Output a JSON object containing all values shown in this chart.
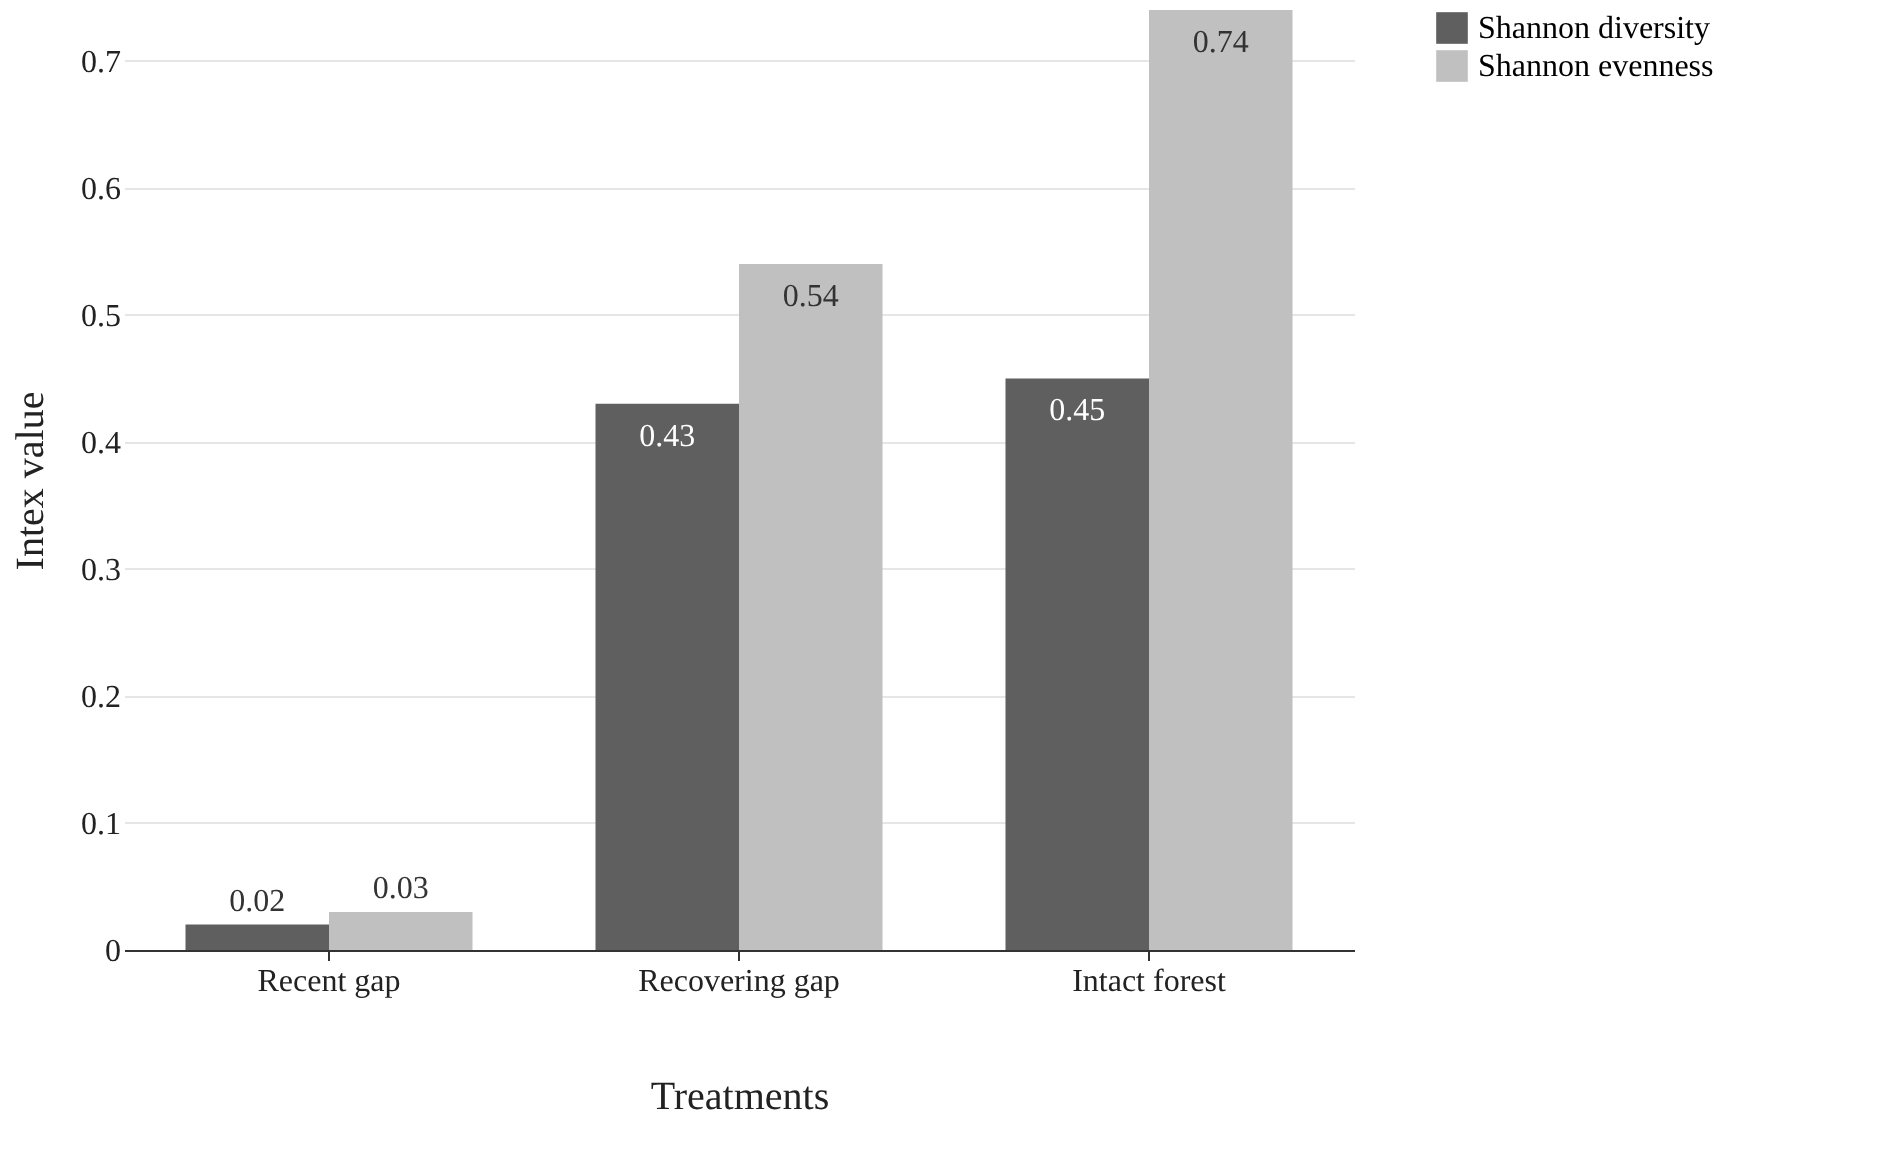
{
  "chart_data": {
    "type": "bar",
    "xlabel": "Treatments",
    "ylabel": "Intex value",
    "categories": [
      "Recent gap",
      "Recovering gap",
      "Intact forest"
    ],
    "series": [
      {
        "name": "Shannon diversity",
        "color": "#5f5f5f",
        "values": [
          0.02,
          0.43,
          0.45
        ]
      },
      {
        "name": "Shannon evenness",
        "color": "#c0c0c0",
        "values": [
          0.03,
          0.54,
          0.74
        ]
      }
    ],
    "ylim": [
      0,
      0.74
    ],
    "yticks": [
      0,
      0.1,
      0.2,
      0.3,
      0.4,
      0.5,
      0.6,
      0.7
    ],
    "grid": "y",
    "legend": "top right",
    "data_labels": true
  }
}
